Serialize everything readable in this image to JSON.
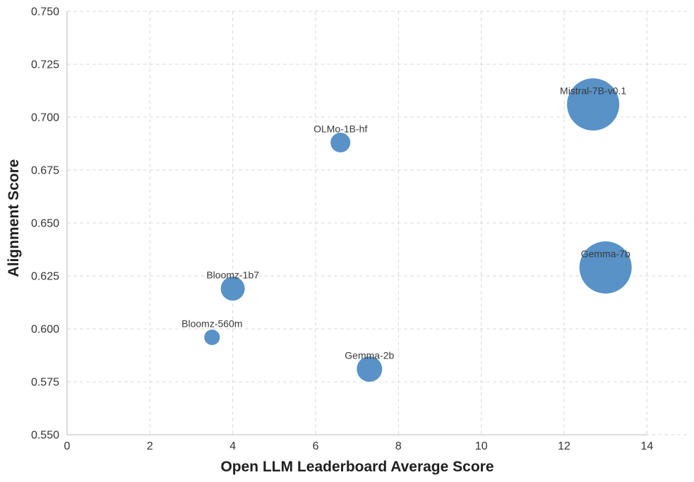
{
  "chart_data": {
    "type": "scatter",
    "subtype": "bubble",
    "title": "",
    "xlabel": "Open LLM Leaderboard Average Score",
    "ylabel": "Alignment Score",
    "xlim": [
      0,
      15.05
    ],
    "ylim": [
      0.55,
      0.75
    ],
    "xtick_values": [
      0,
      2,
      4,
      6,
      8,
      10,
      12,
      14
    ],
    "xtick_labels": [
      "0",
      "2",
      "4",
      "6",
      "8",
      "10",
      "12",
      "14"
    ],
    "ytick_values": [
      0.55,
      0.575,
      0.6,
      0.625,
      0.65,
      0.675,
      0.7,
      0.725,
      0.75
    ],
    "ytick_labels": [
      "0.550",
      "0.575",
      "0.600",
      "0.625",
      "0.650",
      "0.675",
      "0.700",
      "0.725",
      "0.750"
    ],
    "grid": {
      "on": true,
      "style": "dashed",
      "color": "#d9d9d9"
    },
    "legend": null,
    "colors": {
      "bubble": "#5892c7",
      "spine": "#c8c8c8",
      "tick_text": "#333333",
      "point_label_text": "#3a3a3a",
      "axis_title_text": "#1f1f1f"
    },
    "points": [
      {
        "label": "Bloomz-560m",
        "x": 3.5,
        "y": 0.596,
        "r": 11
      },
      {
        "label": "Bloomz-1b7",
        "x": 4.0,
        "y": 0.619,
        "r": 17
      },
      {
        "label": "Gemma-2b",
        "x": 7.3,
        "y": 0.581,
        "r": 18
      },
      {
        "label": "OLMo-1B-hf",
        "x": 6.6,
        "y": 0.688,
        "r": 14
      },
      {
        "label": "Mistral-7B-v0.1",
        "x": 12.7,
        "y": 0.706,
        "r": 37
      },
      {
        "label": "Gemma-7b",
        "x": 13.0,
        "y": 0.629,
        "r": 37
      }
    ]
  }
}
